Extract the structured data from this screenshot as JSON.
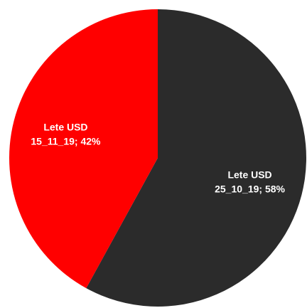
{
  "chart_data": {
    "type": "pie",
    "title": "",
    "start_angle_deg": 0,
    "direction": "clockwise",
    "show_legend": false,
    "slices": [
      {
        "series": "Lete USD",
        "category": "25_10_19",
        "value": 58,
        "label_line1": "Lete USD",
        "label_line2": "25_10_19; 58%",
        "color": "#2b2b2b"
      },
      {
        "series": "Lete USD",
        "category": "15_11_19",
        "value": 42,
        "label_line1": "Lete USD",
        "label_line2": "15_11_19; 42%",
        "color": "#ff0000"
      }
    ]
  }
}
